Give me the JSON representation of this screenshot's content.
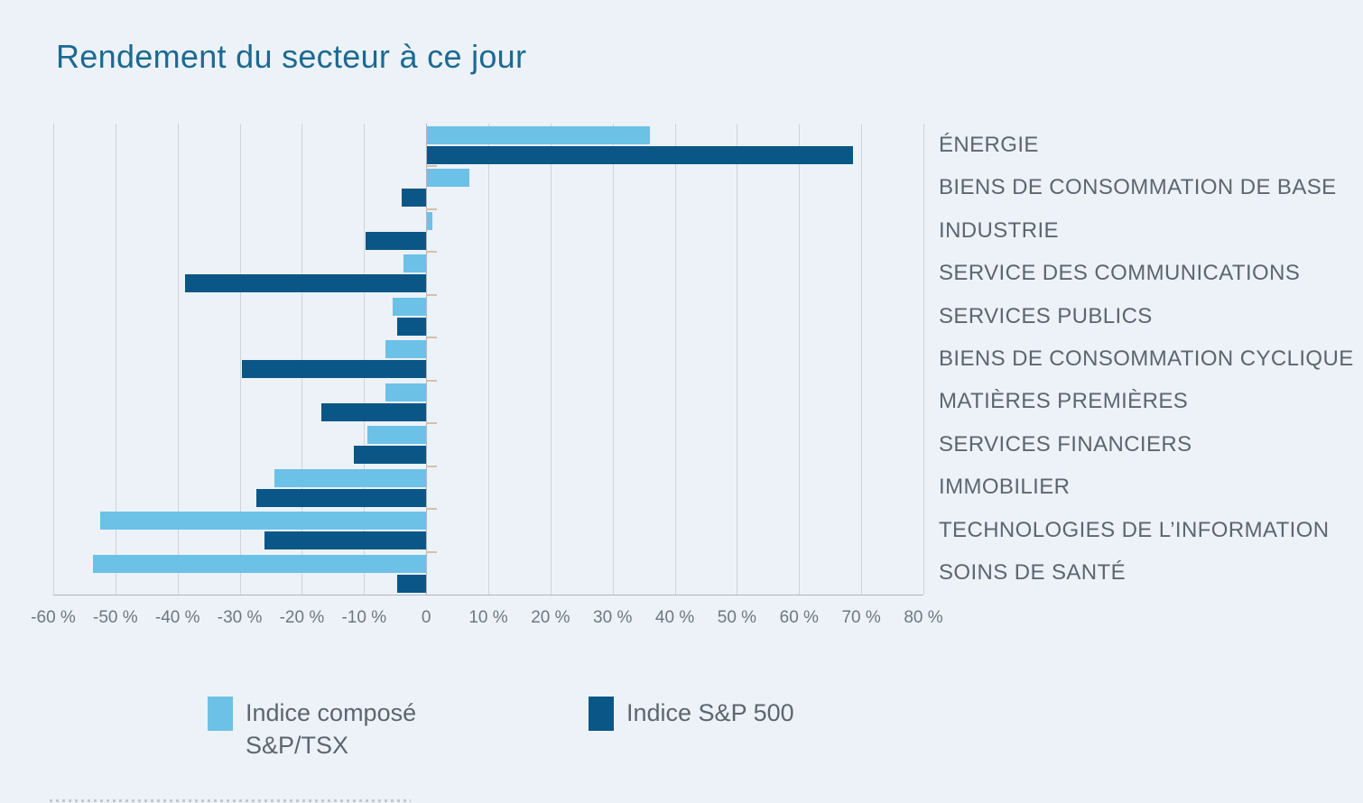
{
  "title": {
    "text": "Rendement du secteur à ce jour"
  },
  "colors": {
    "background": "#edf2f8",
    "title": "#1b6a92",
    "tsx_light_blue": "#6cc1e7",
    "sp500_dark_blue": "#0a5787",
    "gridline": "#cfd4da",
    "zero_line": "#b2b6bc",
    "category_label": "#5d6570",
    "tick_label": "#6e7781",
    "category_axis_tick": "#d5c0a9"
  },
  "chart_data": {
    "type": "bar",
    "orientation": "horizontal",
    "title": "Rendement du secteur à ce jour",
    "unit": "%",
    "grid": true,
    "legend_position": "bottom",
    "xlim": [
      -60,
      80
    ],
    "categories": [
      "ÉNERGIE",
      "BIENS DE CONSOMMATION DE BASE",
      "INDUSTRIE",
      "SERVICE DES COMMUNICATIONS",
      "SERVICES PUBLICS",
      "BIENS DE CONSOMMATION CYCLIQUE",
      "MATIÈRES PREMIÈRES",
      "SERVICES FINANCIERS",
      "IMMOBILIER",
      "TECHNOLOGIES DE L’INFORMATION",
      "SOINS DE SANTÉ"
    ],
    "series": [
      {
        "name": "Indice composé S&P/TSX",
        "color": "#6cc1e7",
        "values": [
          36.0,
          7.0,
          1.0,
          -3.6,
          -5.4,
          -6.6,
          -6.6,
          -9.5,
          -24.4,
          -52.5,
          -53.6
        ]
      },
      {
        "name": "Indice S&P 500",
        "color": "#0a5787",
        "values": [
          68.6,
          -4.0,
          -9.8,
          -38.8,
          -4.6,
          -29.6,
          -16.9,
          -11.7,
          -27.3,
          -26.0,
          -4.7
        ]
      }
    ],
    "x_ticks": [
      {
        "value": -60,
        "label": "-60 %"
      },
      {
        "value": -50,
        "label": "-50 %"
      },
      {
        "value": -40,
        "label": "-40 %"
      },
      {
        "value": -30,
        "label": "-30 %"
      },
      {
        "value": -20,
        "label": "-20 %"
      },
      {
        "value": -10,
        "label": "-10 %"
      },
      {
        "value": 0,
        "label": "0"
      },
      {
        "value": 10,
        "label": "10 %"
      },
      {
        "value": 20,
        "label": "20 %"
      },
      {
        "value": 30,
        "label": "30 %"
      },
      {
        "value": 40,
        "label": "40 %"
      },
      {
        "value": 50,
        "label": "50 %"
      },
      {
        "value": 60,
        "label": "60 %"
      },
      {
        "value": 70,
        "label": "70 %"
      },
      {
        "value": 80,
        "label": "80 %"
      }
    ]
  }
}
